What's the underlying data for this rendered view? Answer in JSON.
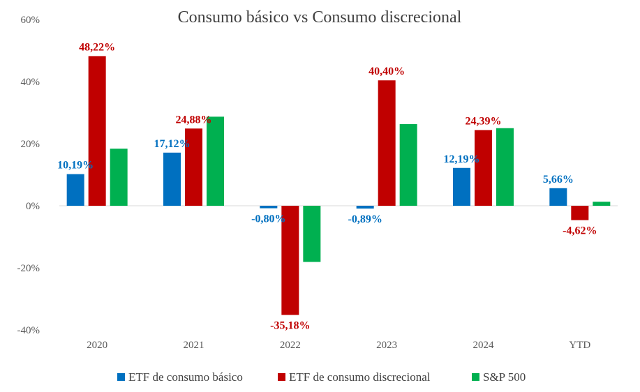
{
  "chart_data": {
    "type": "bar",
    "title": "Consumo básico vs Consumo discrecional",
    "xlabel": "",
    "ylabel": "",
    "categories": [
      "2020",
      "2021",
      "2022",
      "2023",
      "2024",
      "YTD"
    ],
    "ylim": [
      -40,
      60
    ],
    "yticks": [
      60,
      40,
      20,
      0,
      -20,
      -40
    ],
    "ytick_labels": [
      "60%",
      "40%",
      "20%",
      "0%",
      "-20%",
      "-40%"
    ],
    "grid": false,
    "legend_position": "bottom",
    "series": [
      {
        "name": "ETF de consumo básico",
        "color": "#0070C0",
        "values": [
          10.19,
          17.12,
          -0.8,
          -0.89,
          12.19,
          5.66
        ],
        "labels": [
          "10,19%",
          "17,12%",
          "-0,80%",
          "-0,89%",
          "12,19%",
          "5,66%"
        ]
      },
      {
        "name": "ETF de consumo discrecional",
        "color": "#C00000",
        "values": [
          48.22,
          24.88,
          -35.18,
          40.4,
          24.39,
          -4.62
        ],
        "labels": [
          "48,22%",
          "24,88%",
          "-35,18%",
          "40,40%",
          "24,39%",
          "-4,62%"
        ]
      },
      {
        "name": "S&P 500",
        "color": "#00B050",
        "values": [
          18.4,
          28.7,
          -18.1,
          26.3,
          25.0,
          1.3
        ],
        "labels": [
          null,
          null,
          null,
          null,
          null,
          null
        ]
      }
    ]
  }
}
